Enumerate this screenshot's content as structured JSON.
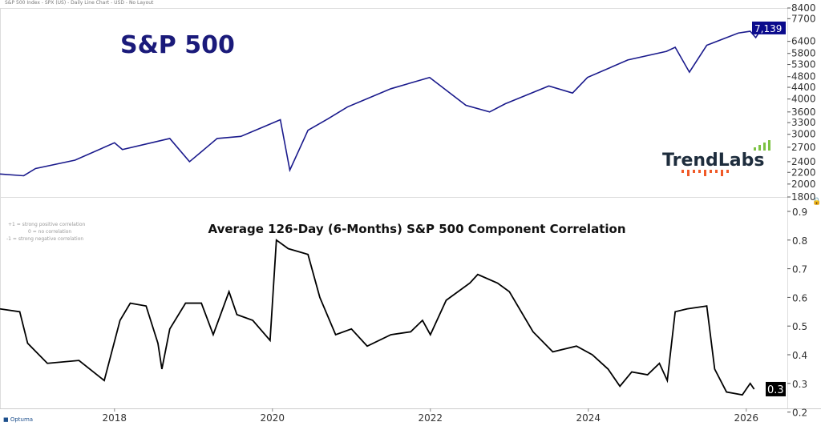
{
  "header": "S&P 500 Index - SPX (US) - Daily Line Chart - USD - No Layout",
  "watermark": "TrendLabs",
  "footer_brand": "Optuma",
  "colors": {
    "spx_line": "#1a1a8c",
    "corr_line": "#000000",
    "title": "#1a1a7a",
    "logo_dark": "#1e2d3d",
    "logo_green": "#7cc242",
    "logo_red": "#f05a28"
  },
  "chart_data": [
    {
      "type": "line",
      "title": "S&P 500",
      "yscale": "log",
      "ylim": [
        1800,
        8400
      ],
      "yticks": [
        8400,
        7700,
        6400,
        5800,
        5300,
        4800,
        4400,
        4000,
        3600,
        3300,
        3000,
        2700,
        2400,
        2200,
        2000,
        1800
      ],
      "last_value_label": "7,139",
      "x": [
        2016.55,
        2016.85,
        2017.0,
        2017.5,
        2018.0,
        2018.1,
        2018.7,
        2018.95,
        2019.3,
        2019.6,
        2019.9,
        2020.1,
        2020.22,
        2020.45,
        2020.7,
        2020.95,
        2021.5,
        2021.99,
        2022.45,
        2022.75,
        2022.95,
        2023.5,
        2023.8,
        2023.99,
        2024.5,
        2024.99,
        2025.1,
        2025.28,
        2025.5,
        2025.9,
        2026.05,
        2026.12,
        2026.2
      ],
      "values": [
        2170,
        2140,
        2270,
        2430,
        2800,
        2650,
        2900,
        2400,
        2900,
        2950,
        3200,
        3380,
        2240,
        3100,
        3400,
        3750,
        4350,
        4770,
        3800,
        3600,
        3850,
        4450,
        4200,
        4770,
        5500,
        5900,
        6100,
        4980,
        6200,
        6850,
        6950,
        6600,
        7139
      ]
    },
    {
      "type": "line",
      "title": "Average 126-Day (6-Months) S&P 500 Component Correlation",
      "annotations": [
        "+1 = strong positive correlation",
        "0 = no correlation",
        "-1 = strong negative correlation"
      ],
      "ylim": [
        0.2,
        0.95
      ],
      "yticks": [
        0.9,
        0.8,
        0.7,
        0.6,
        0.5,
        0.4,
        0.3,
        0.2
      ],
      "last_value_label": "0.3",
      "xticks": [
        "2018",
        "2020",
        "2022",
        "2024",
        "2026"
      ],
      "xlim": [
        2016.55,
        2026.52
      ],
      "x": [
        2016.55,
        2016.8,
        2016.9,
        2017.15,
        2017.55,
        2017.87,
        2018.07,
        2018.2,
        2018.4,
        2018.55,
        2018.6,
        2018.7,
        2018.9,
        2019.1,
        2019.25,
        2019.45,
        2019.55,
        2019.75,
        2019.97,
        2020.05,
        2020.2,
        2020.45,
        2020.6,
        2020.8,
        2021.0,
        2021.2,
        2021.5,
        2021.75,
        2021.9,
        2022.0,
        2022.2,
        2022.5,
        2022.6,
        2022.85,
        2023.0,
        2023.3,
        2023.55,
        2023.85,
        2024.05,
        2024.25,
        2024.4,
        2024.55,
        2024.75,
        2024.9,
        2025.0,
        2025.1,
        2025.25,
        2025.5,
        2025.6,
        2025.75,
        2025.95,
        2026.05,
        2026.1
      ],
      "values": [
        0.56,
        0.55,
        0.44,
        0.37,
        0.38,
        0.31,
        0.52,
        0.58,
        0.57,
        0.44,
        0.35,
        0.49,
        0.58,
        0.58,
        0.47,
        0.62,
        0.54,
        0.52,
        0.45,
        0.8,
        0.77,
        0.75,
        0.6,
        0.47,
        0.49,
        0.43,
        0.47,
        0.48,
        0.52,
        0.47,
        0.59,
        0.65,
        0.68,
        0.65,
        0.62,
        0.48,
        0.41,
        0.43,
        0.4,
        0.35,
        0.29,
        0.34,
        0.33,
        0.37,
        0.31,
        0.55,
        0.56,
        0.57,
        0.35,
        0.27,
        0.26,
        0.3,
        0.28
      ]
    }
  ]
}
